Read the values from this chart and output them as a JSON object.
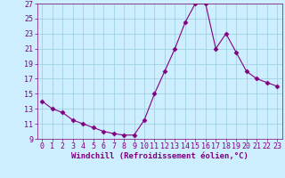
{
  "x": [
    0,
    1,
    2,
    3,
    4,
    5,
    6,
    7,
    8,
    9,
    10,
    11,
    12,
    13,
    14,
    15,
    16,
    17,
    18,
    19,
    20,
    21,
    22,
    23
  ],
  "y": [
    14.0,
    13.0,
    12.5,
    11.5,
    11.0,
    10.5,
    10.0,
    9.7,
    9.5,
    9.5,
    11.5,
    15.0,
    18.0,
    21.0,
    24.5,
    27.0,
    27.0,
    21.0,
    23.0,
    20.5,
    18.0,
    17.0,
    16.5,
    16.0
  ],
  "xlabel": "Windchill (Refroidissement éolien,°C)",
  "ylim": [
    9,
    27
  ],
  "xlim": [
    -0.5,
    23.5
  ],
  "yticks": [
    9,
    11,
    13,
    15,
    17,
    19,
    21,
    23,
    25,
    27
  ],
  "xticks": [
    0,
    1,
    2,
    3,
    4,
    5,
    6,
    7,
    8,
    9,
    10,
    11,
    12,
    13,
    14,
    15,
    16,
    17,
    18,
    19,
    20,
    21,
    22,
    23
  ],
  "line_color": "#800080",
  "marker": "D",
  "marker_size": 2.5,
  "bg_color": "#cceeff",
  "grid_color": "#99ccdd",
  "xlabel_fontsize": 6.5,
  "tick_fontsize": 6
}
